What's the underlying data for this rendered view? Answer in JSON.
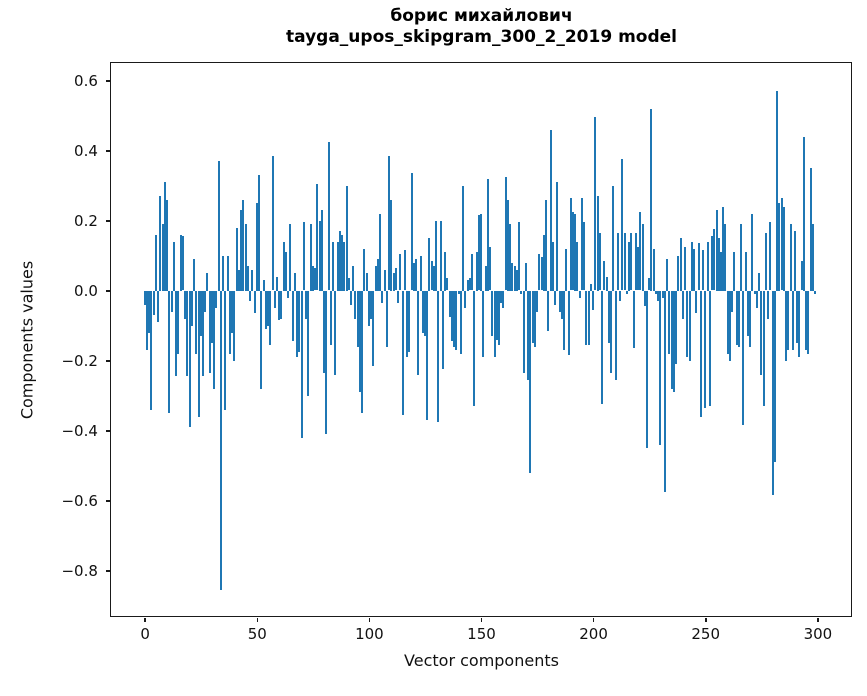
{
  "chart_data": {
    "type": "bar",
    "title": "борис михайлович\ntayga_upos_skipgram_300_2_2019 model",
    "xlabel": "Vector components",
    "ylabel": "Components values",
    "bar_color": "#1f77b4",
    "grid": false,
    "legend": null,
    "x_start": 0,
    "n_components": 300,
    "xlim": [
      -15,
      315
    ],
    "ylim": [
      -0.93,
      0.65
    ],
    "xticks": {
      "values": [
        0,
        50,
        100,
        150,
        200,
        250,
        300
      ],
      "labels": [
        "0",
        "50",
        "100",
        "150",
        "200",
        "250",
        "300"
      ]
    },
    "yticks": {
      "values": [
        0.6,
        0.4,
        0.2,
        0.0,
        -0.2,
        -0.4,
        -0.6,
        -0.8
      ],
      "labels": [
        "0.6",
        "0.4",
        "0.2",
        "0.0",
        "−0.2",
        "−0.4",
        "−0.6",
        "−0.8"
      ]
    },
    "values": [
      -0.04,
      -0.17,
      -0.12,
      -0.34,
      -0.07,
      0.16,
      -0.09,
      0.27,
      0.19,
      0.31,
      0.26,
      -0.35,
      -0.06,
      0.14,
      -0.245,
      -0.18,
      0.16,
      0.155,
      -0.08,
      -0.245,
      -0.39,
      -0.1,
      0.09,
      -0.18,
      -0.36,
      -0.13,
      -0.245,
      -0.06,
      0.05,
      -0.235,
      -0.15,
      -0.28,
      -0.05,
      0.37,
      -0.855,
      0.1,
      -0.34,
      0.1,
      -0.18,
      -0.12,
      -0.2,
      0.18,
      0.06,
      0.23,
      0.26,
      0.19,
      0.07,
      -0.03,
      0.06,
      -0.065,
      0.25,
      0.33,
      -0.28,
      0.03,
      -0.11,
      -0.1,
      -0.155,
      0.385,
      -0.05,
      0.04,
      -0.085,
      -0.08,
      0.14,
      0.11,
      -0.02,
      0.19,
      -0.145,
      0.05,
      -0.19,
      -0.175,
      -0.42,
      0.195,
      -0.08,
      -0.3,
      0.19,
      0.07,
      0.065,
      0.305,
      0.2,
      0.23,
      -0.235,
      -0.41,
      0.425,
      -0.155,
      0.14,
      -0.24,
      0.14,
      0.17,
      0.16,
      0.14,
      0.3,
      0.035,
      -0.04,
      0.07,
      -0.08,
      -0.16,
      -0.29,
      -0.35,
      0.12,
      0.05,
      -0.1,
      -0.08,
      -0.215,
      0.07,
      0.09,
      0.22,
      -0.035,
      0.06,
      -0.16,
      0.385,
      0.26,
      0.05,
      0.065,
      -0.035,
      0.105,
      -0.355,
      0.115,
      -0.19,
      -0.175,
      0.335,
      0.08,
      0.09,
      -0.24,
      0.1,
      -0.12,
      -0.13,
      -0.37,
      0.15,
      0.085,
      0.07,
      0.2,
      -0.375,
      0.2,
      -0.225,
      0.11,
      0.035,
      -0.075,
      -0.145,
      -0.16,
      -0.17,
      -0.01,
      -0.18,
      0.3,
      -0.05,
      0.03,
      0.035,
      0.105,
      -0.33,
      0.11,
      0.215,
      0.22,
      -0.19,
      0.07,
      0.32,
      0.125,
      -0.13,
      -0.19,
      -0.14,
      -0.155,
      -0.035,
      -0.05,
      0.325,
      0.26,
      0.19,
      0.08,
      0.07,
      0.06,
      0.195,
      -0.01,
      -0.235,
      0.08,
      -0.255,
      -0.52,
      -0.15,
      -0.16,
      -0.06,
      0.105,
      0.095,
      0.16,
      0.26,
      -0.115,
      0.46,
      0.14,
      -0.04,
      0.31,
      -0.06,
      -0.08,
      -0.17,
      0.12,
      -0.185,
      0.265,
      0.225,
      0.22,
      0.14,
      -0.02,
      0.265,
      0.195,
      -0.155,
      -0.155,
      0.02,
      -0.055,
      0.495,
      0.27,
      0.165,
      -0.325,
      0.085,
      0.04,
      -0.15,
      -0.235,
      0.3,
      -0.255,
      0.165,
      -0.03,
      0.375,
      0.165,
      -0.01,
      0.14,
      0.165,
      -0.165,
      0.165,
      0.125,
      0.225,
      0.19,
      -0.045,
      -0.45,
      0.035,
      0.52,
      0.12,
      -0.01,
      -0.03,
      -0.44,
      -0.02,
      -0.575,
      0.09,
      -0.18,
      -0.28,
      -0.29,
      -0.21,
      0.1,
      0.15,
      -0.08,
      0.125,
      -0.19,
      -0.2,
      0.14,
      0.12,
      -0.065,
      0.135,
      -0.36,
      0.115,
      -0.335,
      0.14,
      -0.33,
      0.155,
      0.175,
      0.23,
      0.15,
      0.11,
      0.24,
      0.19,
      -0.18,
      -0.2,
      -0.06,
      0.11,
      -0.155,
      -0.16,
      0.19,
      -0.385,
      0.11,
      -0.13,
      -0.16,
      0.22,
      -0.01,
      -0.05,
      0.05,
      -0.24,
      -0.33,
      0.165,
      -0.08,
      0.195,
      -0.585,
      -0.49,
      0.57,
      0.25,
      0.265,
      0.24,
      -0.2,
      -0.17,
      0.19,
      -0.17,
      0.17,
      -0.15,
      -0.19,
      0.085,
      0.44,
      -0.17,
      -0.18,
      0.35,
      0.19,
      -0.01
    ]
  }
}
